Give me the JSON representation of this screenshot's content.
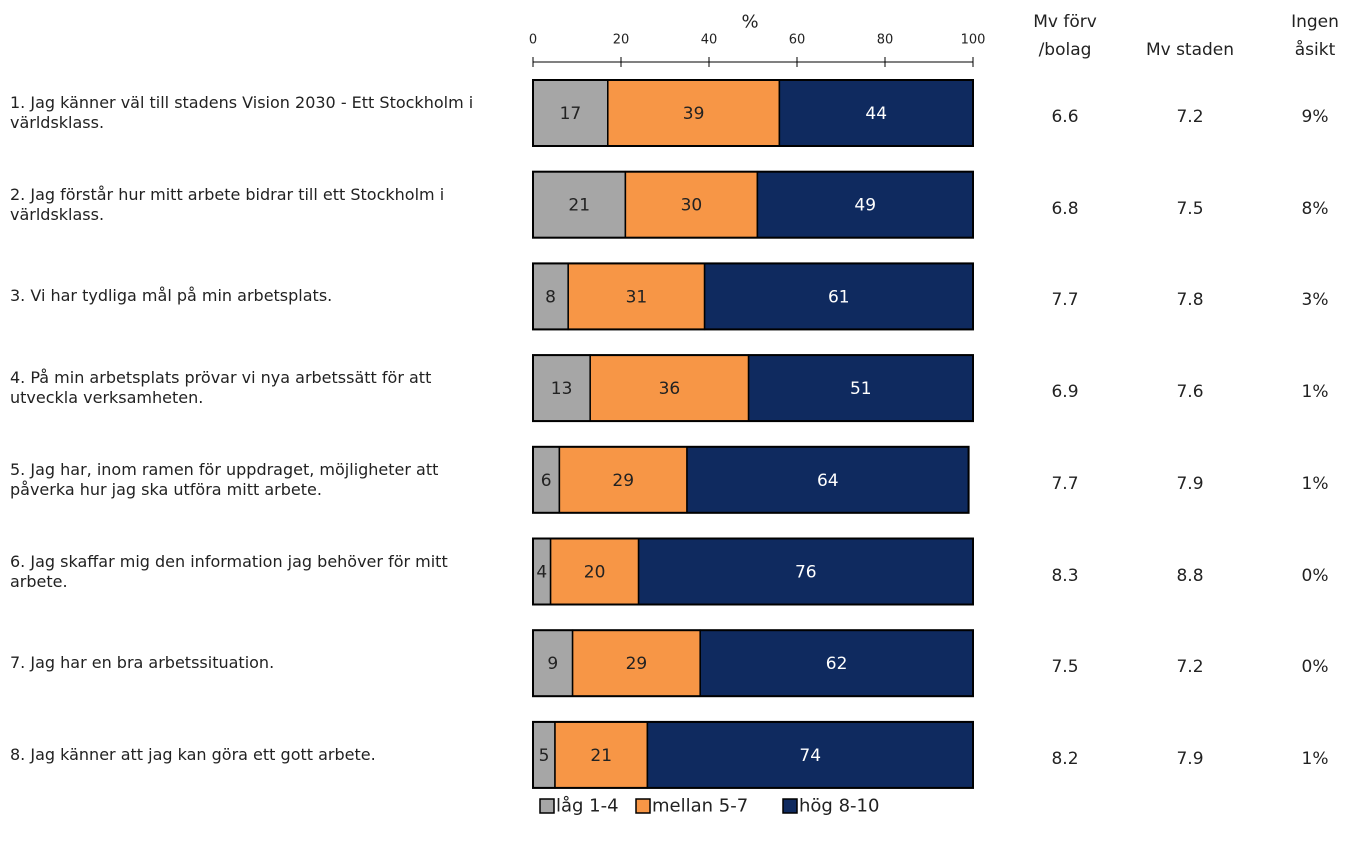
{
  "chart_data": {
    "type": "bar",
    "orientation": "horizontal",
    "stacked": true,
    "xlabel": "%",
    "xlim": [
      0,
      100
    ],
    "xticks": [
      0,
      20,
      40,
      60,
      80,
      100
    ],
    "legend": "bottom",
    "categories": [
      "1. Jag känner väl till stadens Vision 2030 - Ett Stockholm i världsklass.",
      "2. Jag förstår hur mitt arbete bidrar till ett Stockholm i världsklass.",
      "3. Vi har tydliga mål på min arbetsplats.",
      "4. På min arbetsplats prövar vi nya arbetssätt för att utveckla verksamheten.",
      "5. Jag har, inom ramen för uppdraget, möjligheter att påverka hur jag ska utföra mitt arbete.",
      "6. Jag skaffar mig den information jag behöver för mitt arbete.",
      "7. Jag har en bra arbetssituation.",
      "8. Jag känner att jag kan göra ett gott arbete."
    ],
    "series": [
      {
        "name": "låg 1-4",
        "color": "#a6a6a6",
        "values": [
          17,
          21,
          8,
          13,
          6,
          4,
          9,
          5
        ]
      },
      {
        "name": "mellan 5-7",
        "color": "#f79646",
        "values": [
          39,
          30,
          31,
          36,
          29,
          20,
          29,
          21
        ]
      },
      {
        "name": "hög 8-10",
        "color": "#0f2a5f",
        "values": [
          44,
          49,
          61,
          51,
          64,
          76,
          62,
          74
        ]
      }
    ],
    "columns": [
      {
        "header": "Mv förv\n/bolag",
        "values": [
          6.6,
          6.8,
          7.7,
          6.9,
          7.7,
          8.3,
          7.5,
          8.2
        ]
      },
      {
        "header": "Mv staden",
        "values": [
          7.2,
          7.5,
          7.8,
          7.6,
          7.9,
          8.8,
          7.2,
          7.9
        ]
      },
      {
        "header": "Ingen\nåsikt",
        "values": [
          9,
          8,
          3,
          1,
          1,
          0,
          0,
          1
        ],
        "value_labels": [
          "9%",
          "8%",
          "3%",
          "1%",
          "1%",
          "0%",
          "0%",
          "1%"
        ]
      }
    ]
  }
}
